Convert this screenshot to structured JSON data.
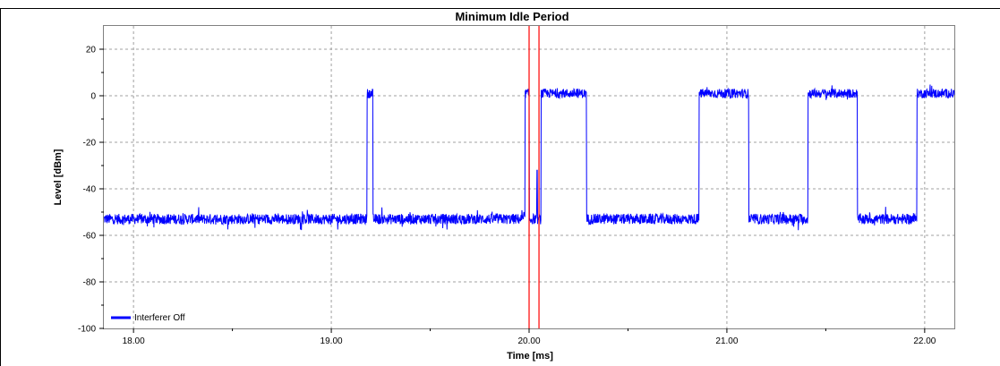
{
  "chart_data": {
    "type": "line",
    "title": "Minimum Idle Period",
    "xlabel": "Time [ms]",
    "ylabel": "Level [dBm]",
    "xlim": [
      17.85,
      22.15
    ],
    "ylim": [
      -100,
      30
    ],
    "x_ticks": [
      18.0,
      19.0,
      20.0,
      21.0,
      22.0
    ],
    "x_tick_labels": [
      "18.00",
      "19.00",
      "20.00",
      "21.00",
      "22.00"
    ],
    "y_ticks": [
      20,
      0,
      -20,
      -40,
      -60,
      -80,
      -100
    ],
    "y_tick_labels": [
      "20",
      "0",
      "-20",
      "-40",
      "-60",
      "-80",
      "-100"
    ],
    "grid": true,
    "legend_position": "bottom-left",
    "markers": [
      {
        "x": 20.0,
        "color": "#ff0000"
      },
      {
        "x": 20.05,
        "color": "#ff0000"
      }
    ],
    "series": [
      {
        "name": "Interferer Off",
        "color": "#0000ff",
        "noise_level": -53,
        "on_level": 1,
        "bursts": [
          [
            19.18,
            19.21
          ],
          [
            19.98,
            20.0
          ],
          [
            20.06,
            20.29
          ],
          [
            20.86,
            21.11
          ],
          [
            21.41,
            21.66
          ],
          [
            21.96,
            22.15
          ]
        ],
        "spike": {
          "x": 20.04,
          "y": -32
        }
      }
    ]
  }
}
